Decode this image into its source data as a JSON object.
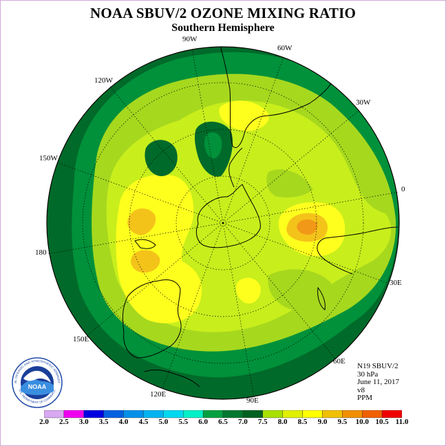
{
  "title": "NOAA SBUV/2 OZONE MIXING RATIO",
  "subtitle": "Southern Hemisphere",
  "longitude_labels": [
    "90W",
    "60W",
    "30W",
    "0",
    "30E",
    "60E",
    "90E",
    "120E",
    "150E",
    "180",
    "150W",
    "120W"
  ],
  "metadata": {
    "satellite": "N19 SBUV/2",
    "pressure": "30 hPa",
    "date": "June 11, 2017",
    "version": "v8",
    "units": "PPM"
  },
  "logo": {
    "text": "NOAA",
    "ring_text": "NATIONAL OCEANIC AND ATMOSPHERIC ADMINISTRATION",
    "ring_text_bottom": "U.S. DEPARTMENT OF COMMERCE"
  },
  "colorbar": {
    "labels": [
      "2.0",
      "2.5",
      "3.0",
      "3.5",
      "4.0",
      "4.5",
      "5.0",
      "5.5",
      "6.0",
      "6.5",
      "7.0",
      "7.5",
      "8.0",
      "8.5",
      "9.0",
      "9.5",
      "10.0",
      "10.5",
      "11.0"
    ],
    "colors": [
      "#b07ef0",
      "#d8a8f0",
      "#f000f0",
      "#0000e0",
      "#0060e0",
      "#0090e8",
      "#00b4f0",
      "#00d8f0",
      "#00f0c8",
      "#00a040",
      "#007830",
      "#006020",
      "#a8e000",
      "#e0f000",
      "#ffff00",
      "#f0c000",
      "#f09000",
      "#f06000",
      "#f00000",
      "#7a4020"
    ]
  },
  "field_colors": {
    "level_6_5": "#00913a",
    "level_7_0": "#006a2a",
    "level_7_5": "#a6d81e",
    "level_8_0": "#c8ee1c",
    "level_8_5": "#ffff1e",
    "level_9_0": "#f4c31a",
    "level_9_5": "#f29818"
  }
}
